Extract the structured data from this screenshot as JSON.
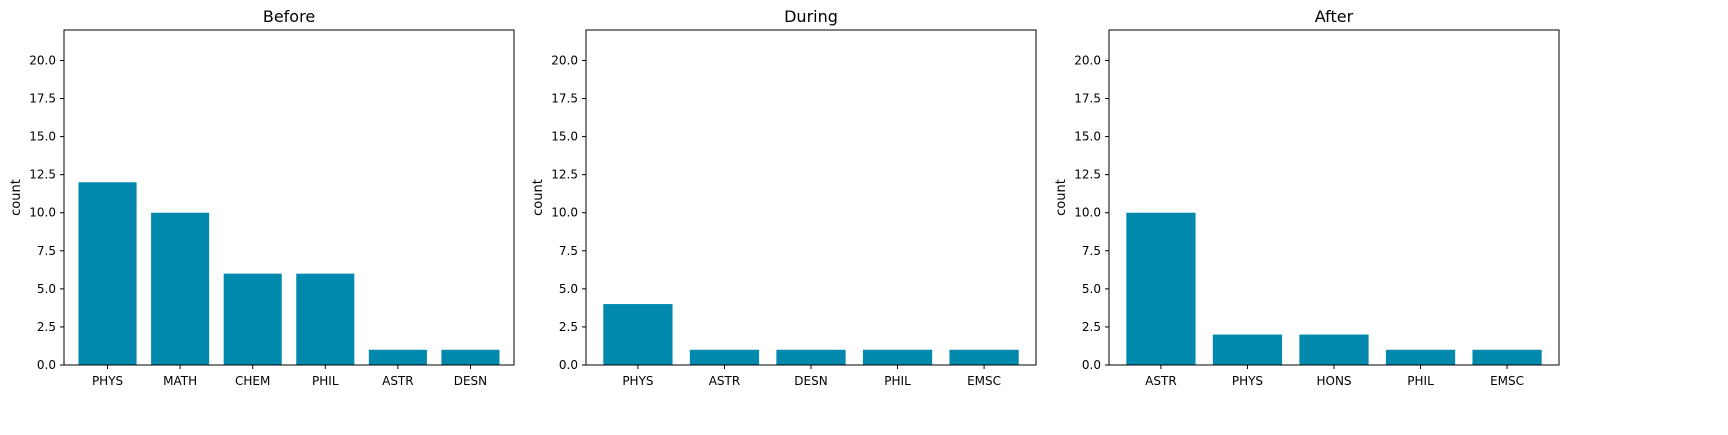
{
  "bar_color": "#0088ad",
  "chart_data": [
    {
      "type": "bar",
      "title": "Before",
      "ylabel": "count",
      "xlabel": "",
      "ylim": [
        0,
        22
      ],
      "yticks": [
        "0.0",
        "2.5",
        "5.0",
        "7.5",
        "10.0",
        "12.5",
        "15.0",
        "17.5",
        "20.0"
      ],
      "categories": [
        "PHYS",
        "MATH",
        "CHEM",
        "PHIL",
        "ASTR",
        "DESN"
      ],
      "values": [
        12,
        10,
        6,
        6,
        1,
        1
      ]
    },
    {
      "type": "bar",
      "title": "During",
      "ylabel": "count",
      "xlabel": "",
      "ylim": [
        0,
        22
      ],
      "yticks": [
        "0.0",
        "2.5",
        "5.0",
        "7.5",
        "10.0",
        "12.5",
        "15.0",
        "17.5",
        "20.0"
      ],
      "categories": [
        "PHYS",
        "ASTR",
        "DESN",
        "PHIL",
        "EMSC"
      ],
      "values": [
        4,
        1,
        1,
        1,
        1
      ]
    },
    {
      "type": "bar",
      "title": "After",
      "ylabel": "count",
      "xlabel": "",
      "ylim": [
        0,
        22
      ],
      "yticks": [
        "0.0",
        "2.5",
        "5.0",
        "7.5",
        "10.0",
        "12.5",
        "15.0",
        "17.5",
        "20.0"
      ],
      "categories": [
        "ASTR",
        "PHYS",
        "HONS",
        "PHIL",
        "EMSC"
      ],
      "values": [
        10,
        2,
        2,
        1,
        1
      ]
    }
  ]
}
